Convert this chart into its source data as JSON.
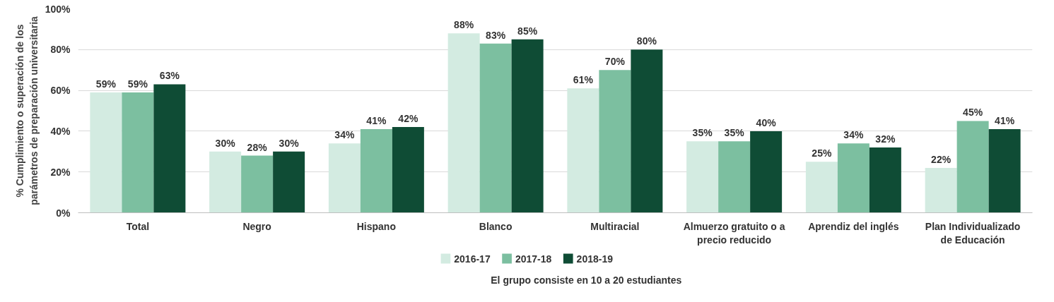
{
  "chart_data": {
    "type": "bar",
    "ylabel": "% Cumplimiento o superación de los\nparámetros de preparación universitaria",
    "categories": [
      "Total",
      "Negro",
      "Hispano",
      "Blanco",
      "Multiracial",
      "Almuerzo gratuito o a\nprecio reducido",
      "Aprendiz del inglés",
      "Plan Individualizado\nde Educación"
    ],
    "series": [
      {
        "name": "2016-17",
        "color": "#d3ebe1",
        "values": [
          59,
          30,
          34,
          88,
          61,
          35,
          25,
          22
        ],
        "value_labels": [
          "59%",
          "30%",
          "34%",
          "88%",
          "61%",
          "35%",
          "25%",
          "22%"
        ]
      },
      {
        "name": "2017-18",
        "color": "#7cbfa0",
        "values": [
          59,
          28,
          41,
          83,
          70,
          35,
          34,
          45
        ],
        "value_labels": [
          "59%",
          "28%",
          "41%",
          "83%",
          "70%",
          "35%",
          "34%",
          "45%"
        ]
      },
      {
        "name": "2018-19",
        "color": "#0f4c35",
        "values": [
          63,
          30,
          42,
          85,
          80,
          40,
          32,
          41
        ],
        "value_labels": [
          "63%",
          "30%",
          "42%",
          "85%",
          "80%",
          "40%",
          "32%",
          "41%"
        ]
      }
    ],
    "ylim": [
      0,
      100
    ],
    "yticks": [
      {
        "value": 0,
        "label": "0%"
      },
      {
        "value": 20,
        "label": "20%"
      },
      {
        "value": 40,
        "label": "40%"
      },
      {
        "value": 60,
        "label": "60%"
      },
      {
        "value": 80,
        "label": "80%"
      },
      {
        "value": 100,
        "label": "100%"
      }
    ],
    "grid": "y",
    "legend": "bottom",
    "annotations": [
      "El grupo consiste en 10 a 20 estudiantes"
    ]
  }
}
